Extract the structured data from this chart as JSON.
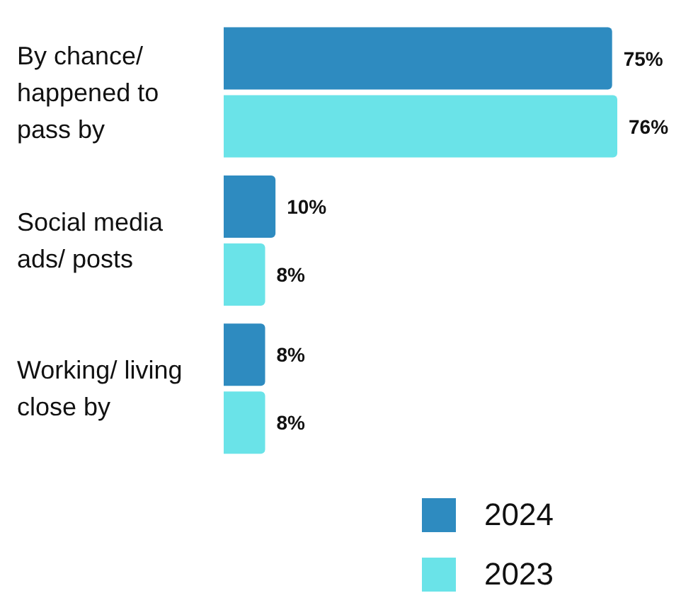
{
  "chart_data": {
    "type": "bar",
    "orientation": "horizontal",
    "categories": [
      "By chance/ happened to pass by",
      "Social media ads/ posts",
      "Working/ living close by"
    ],
    "series": [
      {
        "name": "2024",
        "color": "#2e8bc0",
        "values": [
          75,
          10,
          8
        ],
        "value_labels": [
          "75%",
          "10%",
          "8%"
        ]
      },
      {
        "name": "2023",
        "color": "#6ae3e8",
        "values": [
          76,
          8,
          8
        ],
        "value_labels": [
          "76%",
          "8%",
          "8%"
        ]
      }
    ],
    "legend": "bottom"
  }
}
